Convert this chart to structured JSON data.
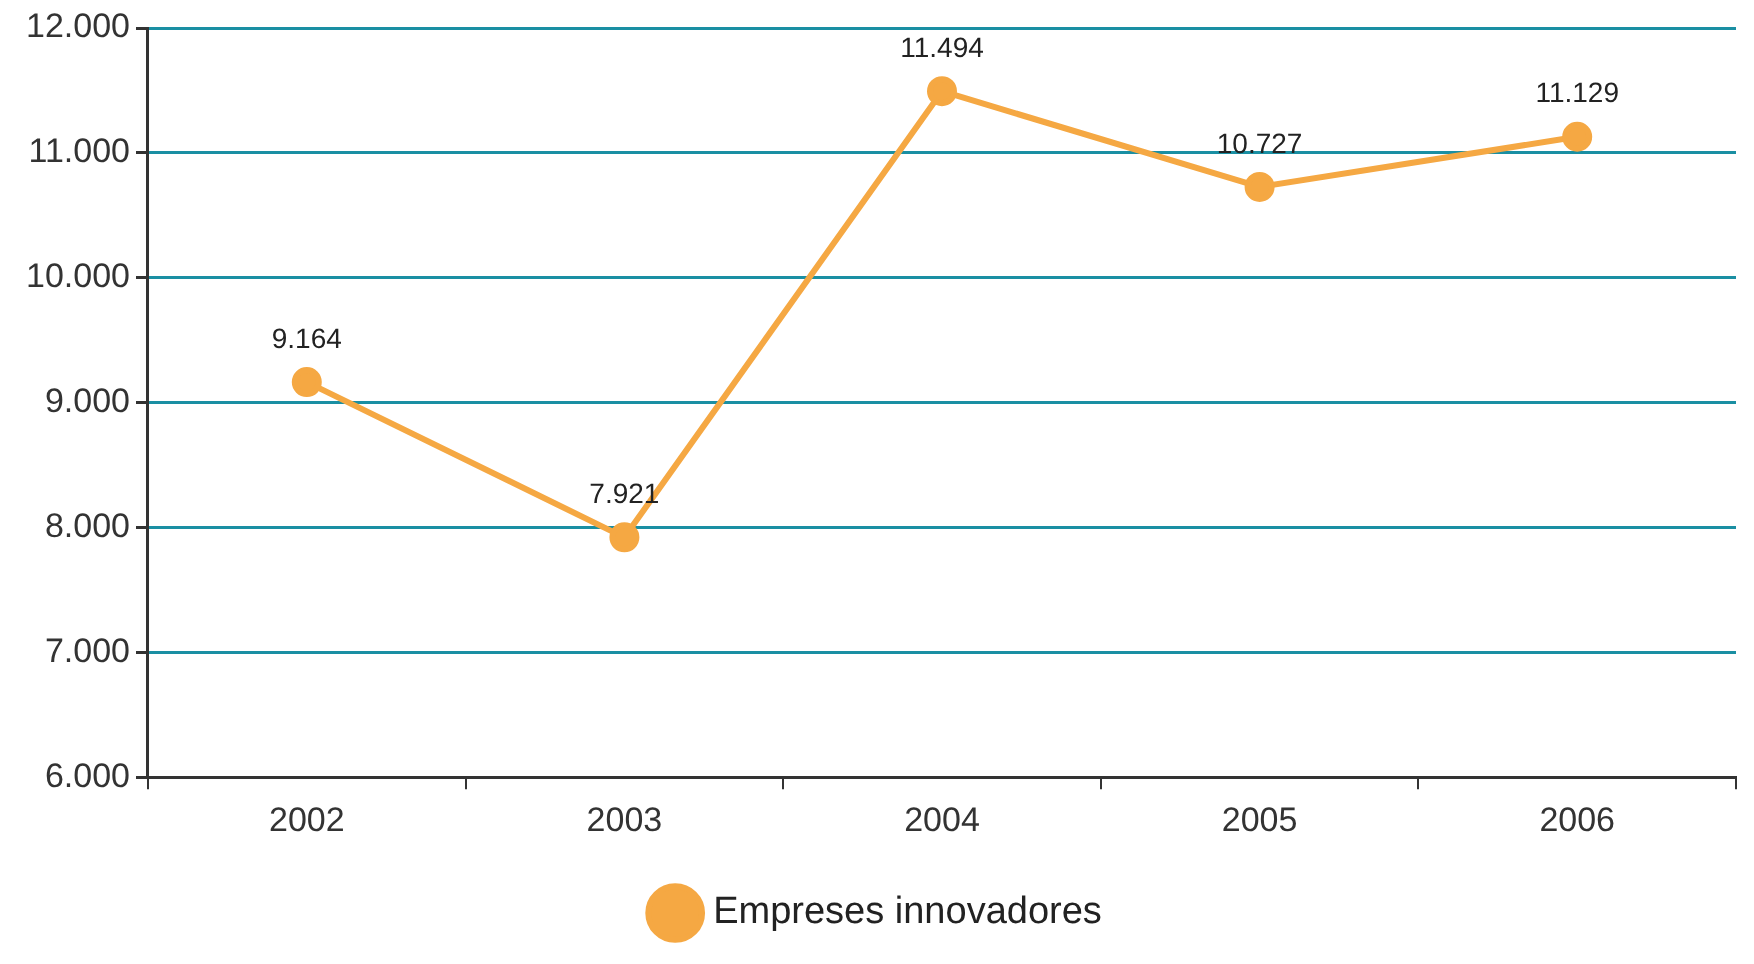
{
  "chart_data": {
    "type": "line",
    "categories": [
      "2002",
      "2003",
      "2004",
      "2005",
      "2006"
    ],
    "series": [
      {
        "name": "Empreses innovadores",
        "color": "#f5a843",
        "values": [
          9164,
          7921,
          11494,
          10727,
          11129
        ],
        "value_labels": [
          "9.164",
          "7.921",
          "11.494",
          "10.727",
          "11.129"
        ]
      }
    ],
    "ylim": [
      6000,
      12000
    ],
    "yticks": [
      {
        "value": 6000,
        "label": "6.000"
      },
      {
        "value": 7000,
        "label": "7.000"
      },
      {
        "value": 8000,
        "label": "8.000"
      },
      {
        "value": 9000,
        "label": "9.000"
      },
      {
        "value": 10000,
        "label": "10.000"
      },
      {
        "value": 11000,
        "label": "11.000"
      },
      {
        "value": 12000,
        "label": "12.000"
      }
    ],
    "grid": "y",
    "legend": "bottom",
    "marker": "circle",
    "line_style": "solid"
  }
}
